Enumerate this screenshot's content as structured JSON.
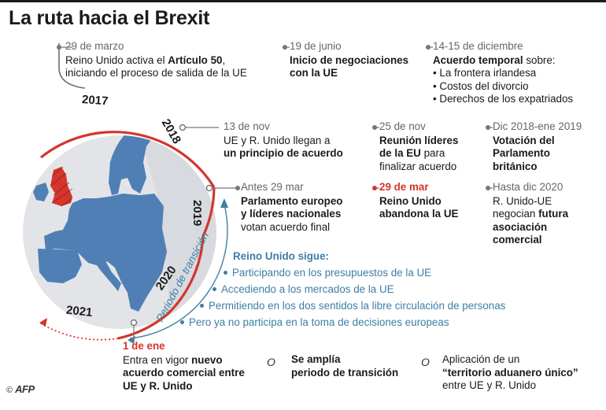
{
  "title": "La ruta hacia el Brexit",
  "years": [
    "2017",
    "2018",
    "2019",
    "2020",
    "2021"
  ],
  "arc_label": "Periodo de transición",
  "events": [
    {
      "date": "29 de marzo",
      "parts": [
        [
          "Reino Unido activa el ",
          ""
        ],
        [
          "Artículo 50",
          "b"
        ],
        [
          ",",
          ""
        ],
        [
          "\n",
          ""
        ],
        [
          "iniciando el proceso de salida de la UE",
          ""
        ]
      ]
    },
    {
      "date": "19 de junio",
      "parts": [
        [
          "Inicio de negociaciones",
          "b"
        ],
        [
          "\n",
          ""
        ],
        [
          "con la UE",
          "b"
        ]
      ]
    },
    {
      "date": "14-15 de diciembre",
      "parts": [
        [
          "Acuerdo temporal",
          "b"
        ],
        [
          " sobre:",
          ""
        ],
        [
          "\n",
          ""
        ],
        [
          "• La frontera irlandesa",
          ""
        ],
        [
          "\n",
          ""
        ],
        [
          "• Costos del divorcio",
          ""
        ],
        [
          "\n",
          ""
        ],
        [
          "• Derechos de los expatriados",
          ""
        ]
      ]
    },
    {
      "date": "13 de nov",
      "parts": [
        [
          "UE y R. Unido llegan a",
          ""
        ],
        [
          "\n",
          ""
        ],
        [
          "un principio de acuerdo",
          "b"
        ]
      ]
    },
    {
      "date": "25 de nov",
      "parts": [
        [
          "Reunión líderes",
          "b"
        ],
        [
          "\n",
          ""
        ],
        [
          "de la EU",
          "b"
        ],
        [
          " para",
          ""
        ],
        [
          "\n",
          ""
        ],
        [
          "finalizar acuerdo",
          ""
        ]
      ]
    },
    {
      "date": "Dic 2018-ene 2019",
      "parts": [
        [
          "Votación del",
          "b"
        ],
        [
          "\n",
          ""
        ],
        [
          "Parlamento",
          "b"
        ],
        [
          "\n",
          ""
        ],
        [
          "británico",
          "b"
        ]
      ]
    },
    {
      "date": "Antes 29 mar",
      "parts": [
        [
          "Parlamento europeo",
          "b"
        ],
        [
          "\n",
          ""
        ],
        [
          "y líderes nacionales",
          "b"
        ],
        [
          "\n",
          ""
        ],
        [
          "votan acuerdo final",
          ""
        ]
      ]
    },
    {
      "date": "29 de mar",
      "date_style": "red",
      "parts": [
        [
          "Reino Unido",
          "b"
        ],
        [
          "\n",
          ""
        ],
        [
          "abandona la UE",
          "b"
        ]
      ]
    },
    {
      "date": "Hasta dic 2020",
      "parts": [
        [
          "R. Unido-UE",
          ""
        ],
        [
          "\n",
          ""
        ],
        [
          "negocian ",
          ""
        ],
        [
          "futura",
          "b"
        ],
        [
          "\n",
          ""
        ],
        [
          "asociación",
          "b"
        ],
        [
          "\n",
          ""
        ],
        [
          "comercial",
          "b"
        ]
      ]
    },
    {
      "date": "1 de ene",
      "date_style": "red",
      "parts": [
        [
          "Entra en vigor ",
          ""
        ],
        [
          "nuevo",
          "b"
        ],
        [
          "\n",
          ""
        ],
        [
          "acuerdo comercial entre",
          "b"
        ],
        [
          "\n",
          ""
        ],
        [
          "UE y R. Unido",
          "b"
        ]
      ]
    },
    {
      "date": "",
      "parts": [
        [
          "Se amplía",
          "b"
        ],
        [
          "\n",
          ""
        ],
        [
          "periodo de transición",
          "b"
        ]
      ]
    },
    {
      "date": "",
      "parts": [
        [
          "Aplicación de un",
          ""
        ],
        [
          "\n",
          ""
        ],
        [
          "“territorio aduanero único”",
          "b"
        ],
        [
          "\n",
          ""
        ],
        [
          "entre UE y R. Unido",
          ""
        ]
      ]
    }
  ],
  "or_word": "O",
  "uk_heading": "Reino Unido sigue:",
  "uk_items": [
    "Participando en los presupuestos de la UE",
    "Accediendo a los mercados de la UE",
    "Permitiendo en los dos sentidos la libre circulación de personas",
    "Pero ya no participa en la toma de decisiones europeas"
  ],
  "credit": {
    "symbol": "©",
    "agency": "AFP"
  },
  "colors": {
    "arc_red": "#d4352c",
    "note_blue": "#3d7ea6",
    "land": "#4f7fb4",
    "uk": "#d4352c",
    "sea": "#e2e4e7"
  }
}
